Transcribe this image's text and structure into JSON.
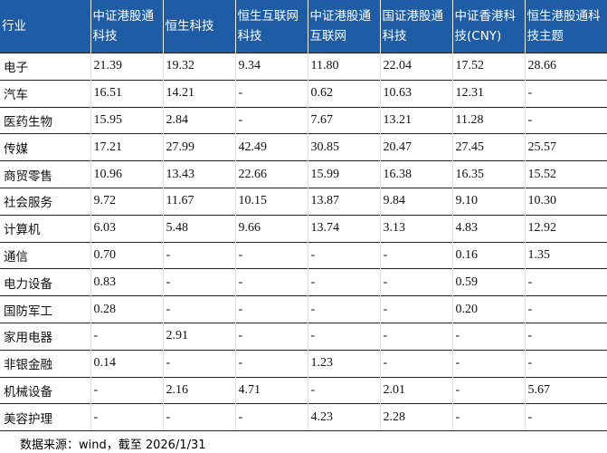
{
  "table": {
    "header": [
      "行业",
      "中证港股通科技",
      "恒生科技",
      "恒生互联网科技",
      "中证港股通互联网",
      "国证港股通科技",
      "中证香港科技(CNY)",
      "恒生港股通科技主题"
    ],
    "rows": [
      [
        "电子",
        "21.39",
        "19.32",
        "9.34",
        "11.80",
        "22.04",
        "17.52",
        "28.66"
      ],
      [
        "汽车",
        "16.51",
        "14.21",
        "-",
        "0.62",
        "10.63",
        "12.31",
        "-"
      ],
      [
        "医药生物",
        "15.95",
        "2.84",
        "-",
        "7.67",
        "13.21",
        "11.28",
        "-"
      ],
      [
        "传媒",
        "17.21",
        "27.99",
        "42.49",
        "30.85",
        "20.47",
        "27.45",
        "25.57"
      ],
      [
        "商贸零售",
        "10.96",
        "13.43",
        "22.66",
        "15.99",
        "16.38",
        "16.35",
        "15.52"
      ],
      [
        "社会服务",
        "9.72",
        "11.67",
        "10.15",
        "13.87",
        "9.84",
        "9.10",
        "10.30"
      ],
      [
        "计算机",
        "6.03",
        "5.48",
        "9.66",
        "13.74",
        "3.13",
        "4.83",
        "12.92"
      ],
      [
        "通信",
        "0.70",
        "-",
        "-",
        "-",
        "-",
        "0.16",
        "1.35"
      ],
      [
        "电力设备",
        "0.83",
        "-",
        "-",
        "-",
        "-",
        "0.59",
        "-"
      ],
      [
        "国防军工",
        "0.28",
        "-",
        "-",
        "-",
        "-",
        "0.20",
        "-"
      ],
      [
        "家用电器",
        "-",
        "2.91",
        "-",
        "-",
        "-",
        "-",
        "-"
      ],
      [
        "非银金融",
        "0.14",
        "-",
        "-",
        "1.23",
        "-",
        "-",
        "-"
      ],
      [
        "机械设备",
        "-",
        "2.16",
        "4.71",
        "-",
        "2.01",
        "-",
        "5.67"
      ],
      [
        "美容护理",
        "-",
        "-",
        "-",
        "4.23",
        "2.28",
        "-",
        "-"
      ]
    ]
  },
  "footer": "数据来源：wind，截至 2026/1/31"
}
